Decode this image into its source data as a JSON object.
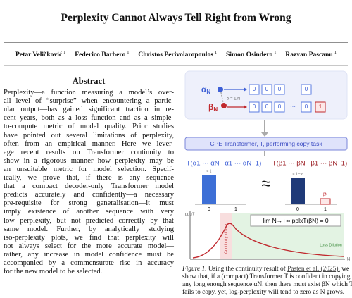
{
  "header": {
    "title": "Perplexity Cannot Always Tell Right from Wrong",
    "authors": [
      {
        "name": "Petar Veličković",
        "affiliation": "1"
      },
      {
        "name": "Federico Barbero",
        "affiliation": "1"
      },
      {
        "name": "Christos Perivolaropoulos",
        "affiliation": "1"
      },
      {
        "name": "Simon Osindero",
        "affiliation": "1"
      },
      {
        "name": "Razvan Pascanu",
        "affiliation": "1"
      }
    ]
  },
  "abstract": {
    "heading": "Abstract",
    "lines": [
      "Perplexity—a function measuring a model’s over-",
      "all level of “surprise” when encountering a partic-",
      "ular output—has gained significant traction in re-",
      "cent years, both as a loss function and as a simple-",
      "to-compute metric of model quality. Prior studies",
      "have pointed out several limitations of perplexity,",
      "often from an empirical manner. Here we lever-",
      "age recent results on Transformer continuity to",
      "show in a rigorous manner how perplexity may be",
      "an unsuitable metric for model selection. Specif-",
      "ically, we prove that, if there is any sequence",
      "that a compact decoder-only Transformer model",
      "predicts accurately and confidently—a necessary",
      "pre-requisite for strong generalisation—it must",
      "imply existence of another sequence with very",
      "low perplexity, but not predicted correctly by that",
      "same model. Further, by analytically studying",
      "iso-perplexity plots, we find that perplexity will",
      "not always select for the more accurate model—",
      "rather, any increase in model confidence must be",
      "accompanied by a commensurate rise in accuracy",
      "for the new model to be selected."
    ]
  },
  "figure": {
    "alpha": "α",
    "beta": "β",
    "sub_n": "N",
    "delta": "δ = 1/N",
    "zero": "0",
    "one": "1",
    "dots": "···",
    "model_box": "CPE Transformer, T, performing copy task",
    "formula_alpha": "T(α1 ··· αN | α1 ··· αN−1)",
    "formula_beta": "T(β1 ··· βN | β1 ··· βN−1)",
    "approx": "≈",
    "approx_one": "≈ 1",
    "approx_one_eps": "≈ 1 − ε",
    "beta_n": "βN",
    "y_label": "pplxT",
    "x_label": "N",
    "limit": "lim N→+∞ pplxT(βN) = 0",
    "continuity": "Continuity kicks in",
    "dilution": "Loss Dilution"
  },
  "caption": {
    "label": "Figure 1.",
    "line1_start": "Using the continuity result of",
    "citation": "Pasten et al. (2025),",
    "line1_end": "we",
    "lines": [
      "show that, if a (compact) Transformer T is confident in copying",
      "any long enough sequence αN, then there must exist βN which T",
      "fails to copy, yet, log-perplexity will tend to zero as N grows."
    ]
  }
}
